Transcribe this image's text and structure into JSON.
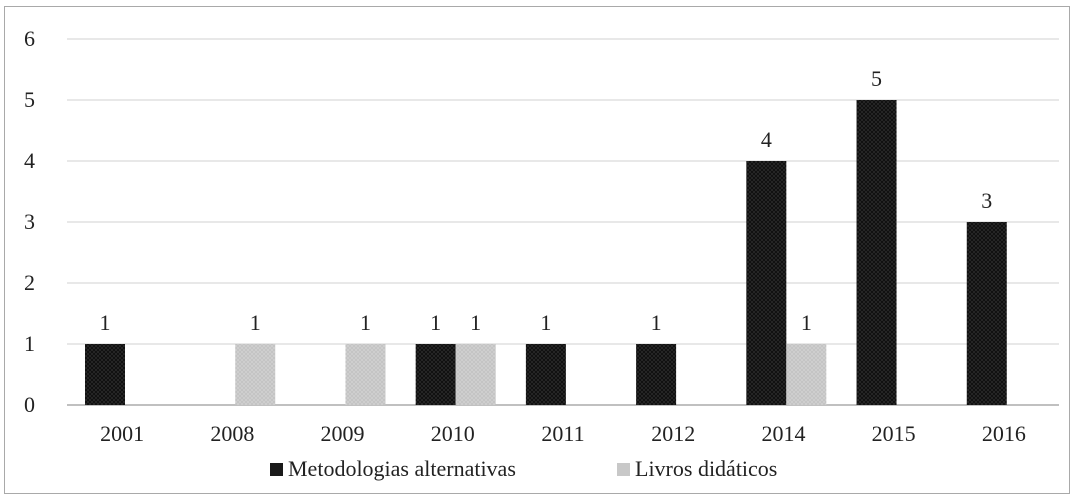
{
  "chart_data": {
    "type": "bar",
    "categories": [
      "2001",
      "2008",
      "2009",
      "2010",
      "2011",
      "2012",
      "2014",
      "2015",
      "2016"
    ],
    "series": [
      {
        "name": "Metodologias alternativas",
        "values": [
          1,
          0,
          0,
          1,
          1,
          1,
          4,
          5,
          3
        ],
        "color": "#1a1a1a"
      },
      {
        "name": "Livros didáticos",
        "values": [
          0,
          1,
          1,
          1,
          0,
          0,
          1,
          0,
          0
        ],
        "color": "#c8c8c8"
      }
    ],
    "ylim": [
      0,
      6
    ],
    "yticks": [
      "0",
      "1",
      "2",
      "3",
      "4",
      "5",
      "6"
    ],
    "grid": true,
    "legend_position": "bottom-center",
    "data_labels": true
  }
}
